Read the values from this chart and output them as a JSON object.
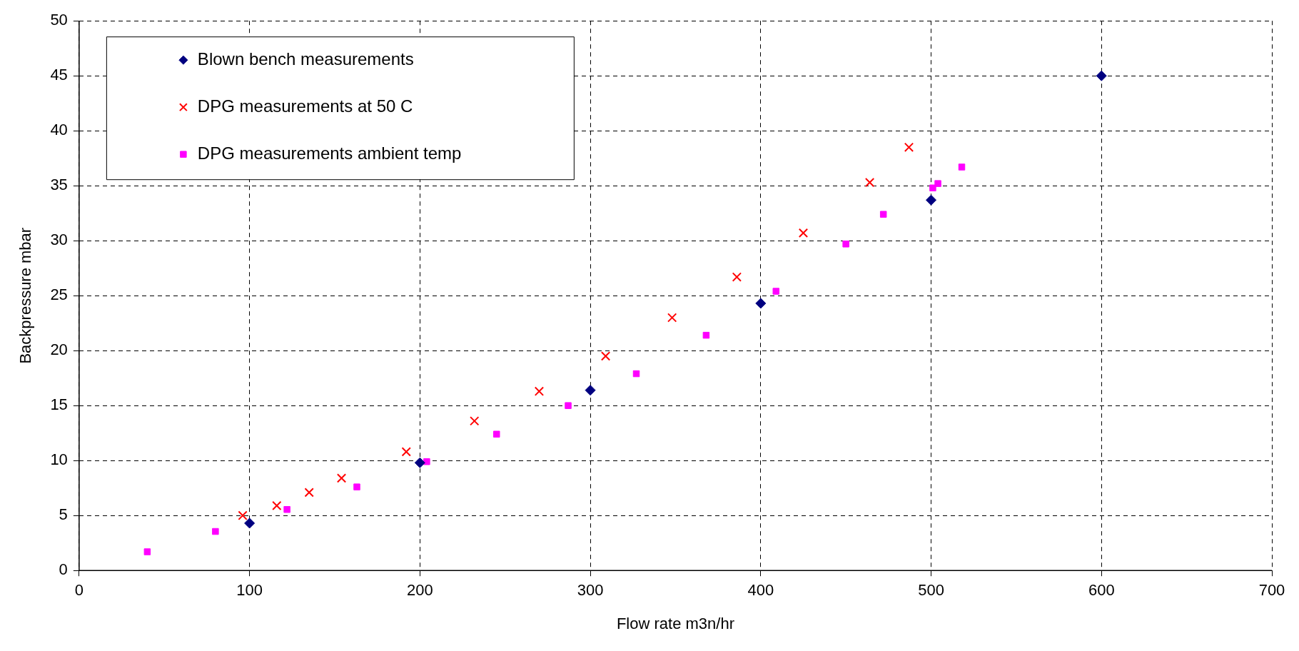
{
  "chart_data": {
    "type": "scatter",
    "xlabel": "Flow rate m3n/hr",
    "ylabel": "Backpressure mbar",
    "xlim": [
      0,
      700
    ],
    "xticks": [
      0,
      100,
      200,
      300,
      400,
      500,
      600,
      700
    ],
    "ylim": [
      0,
      50
    ],
    "yticks": [
      0,
      5,
      10,
      15,
      20,
      25,
      30,
      35,
      40,
      45,
      50
    ],
    "grid": true,
    "legend": "top left",
    "series": [
      {
        "name": "Blown bench measurements",
        "color": "#000080",
        "marker": "diamond",
        "x": [
          100,
          200,
          300,
          400,
          500,
          600
        ],
        "values": [
          4.3,
          9.8,
          16.4,
          24.3,
          33.7,
          45
        ]
      },
      {
        "name": "DPG measurements at 50 C",
        "color": "#ff0000",
        "marker": "cross",
        "x": [
          96,
          116,
          135,
          154,
          192,
          232,
          270,
          309,
          348,
          386,
          425,
          464,
          487
        ],
        "values": [
          5.0,
          5.9,
          7.1,
          8.4,
          10.8,
          13.6,
          16.3,
          19.5,
          23.0,
          26.7,
          30.7,
          35.3,
          38.5
        ]
      },
      {
        "name": "DPG measurements ambient temp",
        "color": "#ff00ff",
        "marker": "square",
        "x": [
          40,
          80,
          122,
          163,
          204,
          245,
          287,
          327,
          368,
          409,
          450,
          472,
          501,
          504,
          518
        ],
        "values": [
          1.7,
          3.55,
          5.55,
          7.6,
          9.9,
          12.4,
          15.0,
          17.9,
          21.4,
          25.4,
          29.7,
          32.4,
          34.8,
          35.2,
          36.7
        ]
      }
    ]
  }
}
